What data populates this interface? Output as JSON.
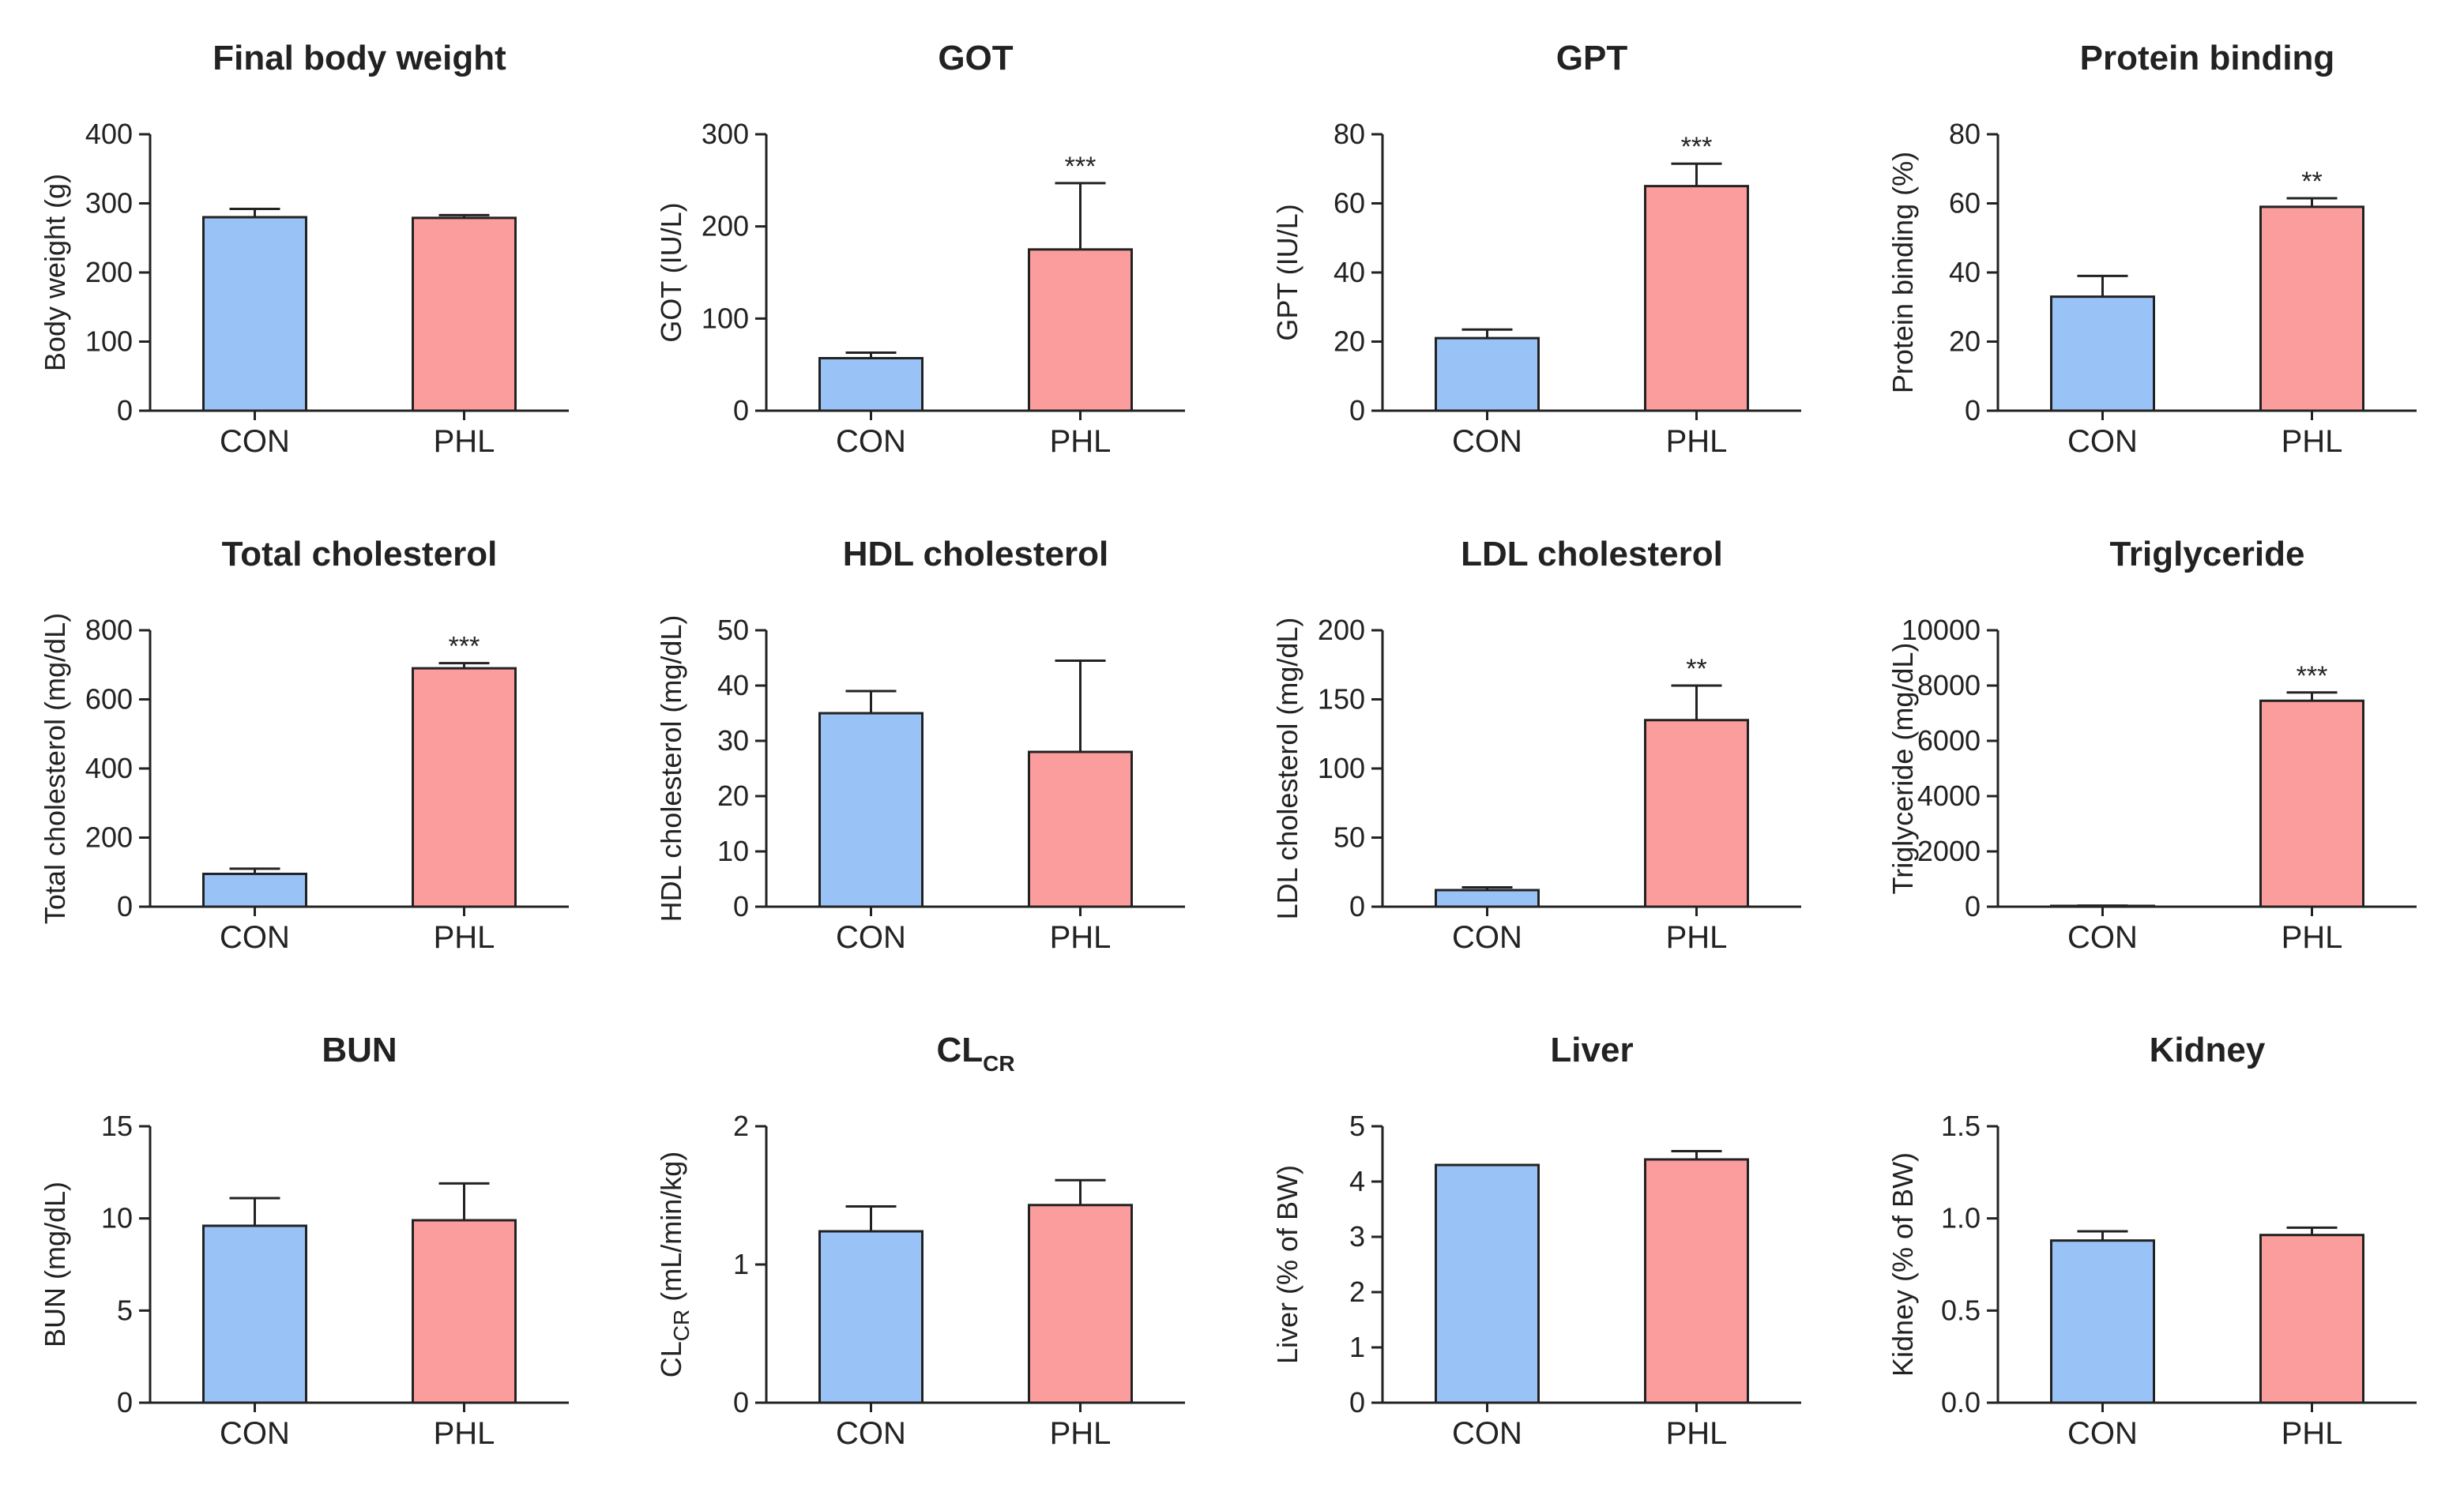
{
  "colors": {
    "con": "#99c2f7",
    "phl": "#fc9d9d",
    "axis": "#222222"
  },
  "chart_data": [
    {
      "type": "bar",
      "title": "Final body weight",
      "ylabel": "Body weight (g)",
      "categories": [
        "CON",
        "PHL"
      ],
      "values": [
        280,
        279
      ],
      "errors": [
        12,
        4
      ],
      "significance": [
        "",
        ""
      ],
      "ylim": [
        0,
        400
      ],
      "yticks": [
        "0",
        "100",
        "200",
        "300",
        "400"
      ]
    },
    {
      "type": "bar",
      "title": "GOT",
      "ylabel": "GOT (IU/L)",
      "categories": [
        "CON",
        "PHL"
      ],
      "values": [
        57,
        175
      ],
      "errors": [
        6,
        72
      ],
      "significance": [
        "",
        "***"
      ],
      "ylim": [
        0,
        300
      ],
      "yticks": [
        "0",
        "100",
        "200",
        "300"
      ]
    },
    {
      "type": "bar",
      "title": "GPT",
      "ylabel": "GPT (IU/L)",
      "categories": [
        "CON",
        "PHL"
      ],
      "values": [
        21,
        65
      ],
      "errors": [
        2.5,
        6.5
      ],
      "significance": [
        "",
        "***"
      ],
      "ylim": [
        0,
        80
      ],
      "yticks": [
        "0",
        "20",
        "40",
        "60",
        "80"
      ]
    },
    {
      "type": "bar",
      "title": "Protein binding",
      "ylabel": "Protein binding (%)",
      "categories": [
        "CON",
        "PHL"
      ],
      "values": [
        33,
        59
      ],
      "errors": [
        6,
        2.5
      ],
      "significance": [
        "",
        "**"
      ],
      "ylim": [
        0,
        80
      ],
      "yticks": [
        "0",
        "20",
        "40",
        "60",
        "80"
      ]
    },
    {
      "type": "bar",
      "title": "Total cholesterol",
      "ylabel": "Total cholesterol (mg/dL)",
      "categories": [
        "CON",
        "PHL"
      ],
      "values": [
        95,
        690
      ],
      "errors": [
        15,
        15
      ],
      "significance": [
        "",
        "***"
      ],
      "ylim": [
        0,
        800
      ],
      "yticks": [
        "0",
        "200",
        "400",
        "600",
        "800"
      ]
    },
    {
      "type": "bar",
      "title": "HDL cholesterol",
      "ylabel": "HDL cholesterol (mg/dL)",
      "categories": [
        "CON",
        "PHL"
      ],
      "values": [
        35,
        28
      ],
      "errors": [
        4,
        16.5
      ],
      "significance": [
        "",
        ""
      ],
      "ylim": [
        0,
        50
      ],
      "yticks": [
        "0",
        "10",
        "20",
        "30",
        "40",
        "50"
      ]
    },
    {
      "type": "bar",
      "title": "LDL cholesterol",
      "ylabel": "LDL cholesterol (mg/dL)",
      "categories": [
        "CON",
        "PHL"
      ],
      "values": [
        12,
        135
      ],
      "errors": [
        2,
        25
      ],
      "significance": [
        "",
        "**"
      ],
      "ylim": [
        0,
        200
      ],
      "yticks": [
        "0",
        "50",
        "100",
        "150",
        "200"
      ]
    },
    {
      "type": "bar",
      "title": "Triglyceride",
      "ylabel": "Triglyceride (mg/dL)",
      "categories": [
        "CON",
        "PHL"
      ],
      "values": [
        30,
        7450
      ],
      "errors": [
        10,
        300
      ],
      "significance": [
        "",
        "***"
      ],
      "ylim": [
        0,
        10000
      ],
      "yticks": [
        "0",
        "2000",
        "4000",
        "6000",
        "8000",
        "10000"
      ]
    },
    {
      "type": "bar",
      "title": "BUN",
      "ylabel": "BUN (mg/dL)",
      "categories": [
        "CON",
        "PHL"
      ],
      "values": [
        9.6,
        9.9
      ],
      "errors": [
        1.5,
        2.0
      ],
      "significance": [
        "",
        ""
      ],
      "ylim": [
        0,
        15
      ],
      "yticks": [
        "0",
        "5",
        "10",
        "15"
      ]
    },
    {
      "type": "bar",
      "title": "CL",
      "title_sub": "CR",
      "ylabel": "CL",
      "ylabel_sub": "CR",
      "ylabel_after": " (mL/min/kg)",
      "categories": [
        "CON",
        "PHL"
      ],
      "values": [
        1.24,
        1.43
      ],
      "errors": [
        0.18,
        0.18
      ],
      "significance": [
        "",
        ""
      ],
      "ylim": [
        0,
        2
      ],
      "yticks": [
        "0",
        "1",
        "2"
      ]
    },
    {
      "type": "bar",
      "title": "Liver",
      "ylabel": "Liver (% of BW)",
      "categories": [
        "CON",
        "PHL"
      ],
      "values": [
        4.3,
        4.4
      ],
      "errors": [
        0,
        0.15
      ],
      "significance": [
        "",
        ""
      ],
      "ylim": [
        0,
        5
      ],
      "yticks": [
        "0",
        "1",
        "2",
        "3",
        "4",
        "5"
      ]
    },
    {
      "type": "bar",
      "title": "Kidney",
      "ylabel": "Kidney (% of BW)",
      "categories": [
        "CON",
        "PHL"
      ],
      "values": [
        0.88,
        0.91
      ],
      "errors": [
        0.05,
        0.04
      ],
      "significance": [
        "",
        ""
      ],
      "ylim": [
        0,
        1.5
      ],
      "yticks": [
        "0.0",
        "0.5",
        "1.0",
        "1.5"
      ]
    }
  ]
}
